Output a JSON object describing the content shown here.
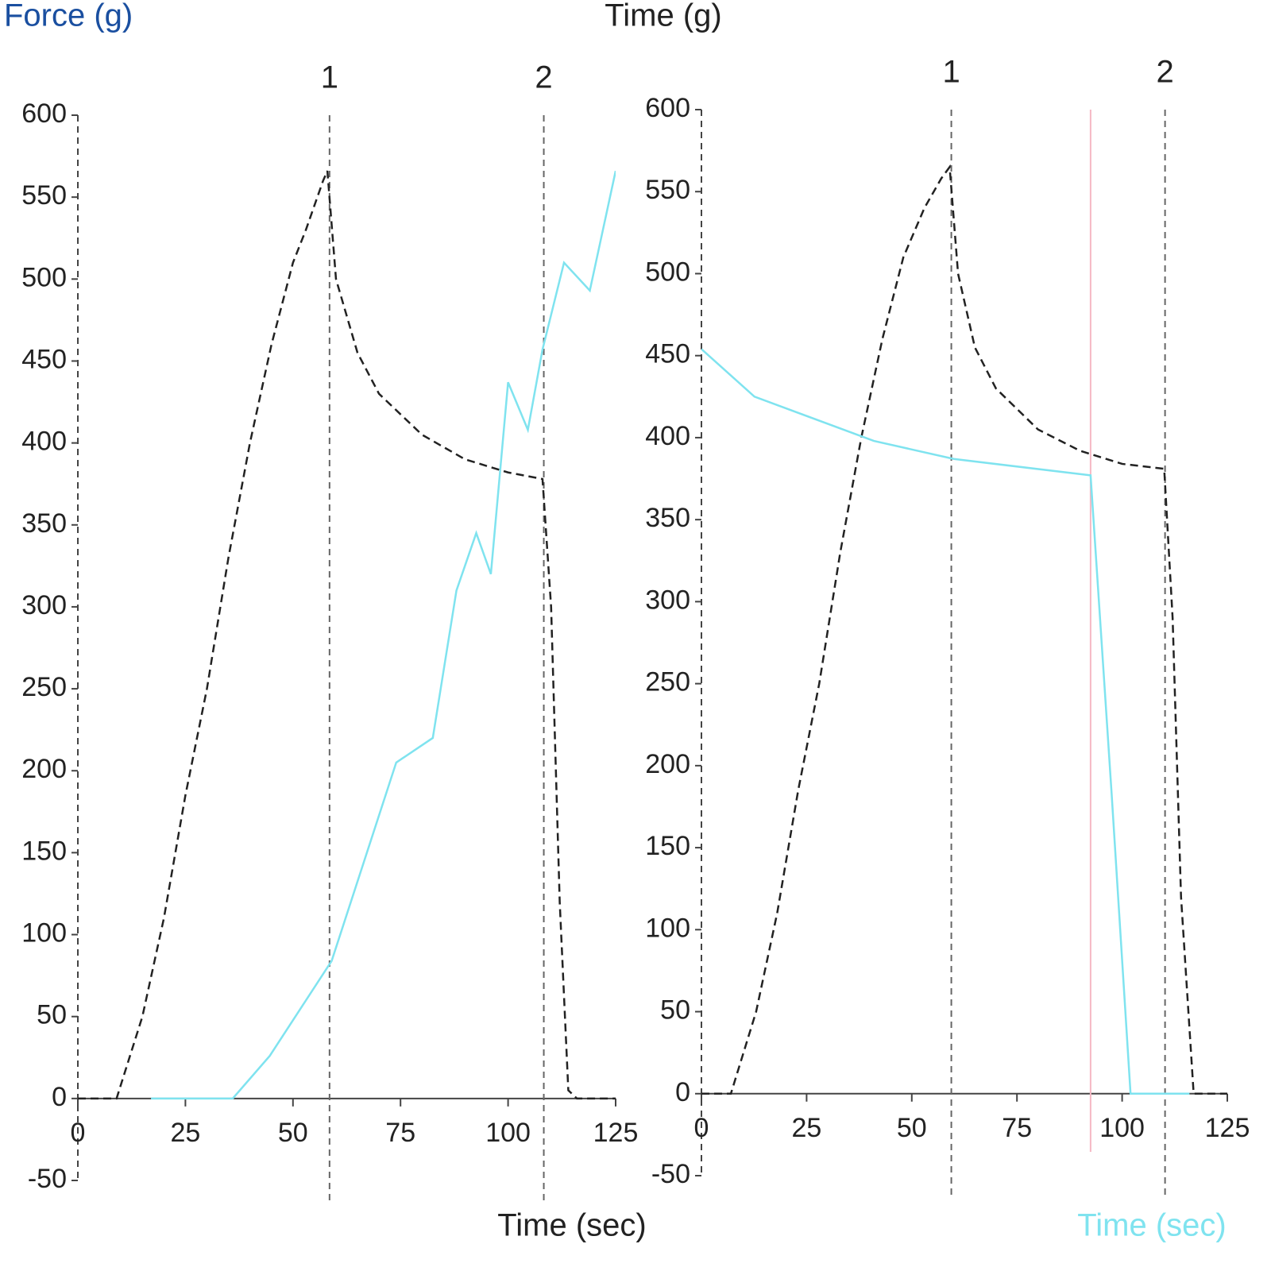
{
  "chart_data": [
    {
      "type": "line",
      "y_label": "Force (g)",
      "x_label": "Time (sec)",
      "xlim": [
        0,
        125
      ],
      "ylim": [
        -50,
        600
      ],
      "xticks": [
        0,
        25,
        50,
        75,
        100,
        125
      ],
      "yticks": [
        -50,
        0,
        50,
        100,
        150,
        200,
        250,
        300,
        350,
        400,
        450,
        500,
        550,
        600
      ],
      "markers": [
        {
          "value": 58.5,
          "label": "1"
        },
        {
          "value": 108.3,
          "label": "2"
        }
      ],
      "series": [
        {
          "color": "#222222",
          "dashed": true,
          "x": [
            0,
            5,
            9,
            15,
            20,
            25,
            30,
            35,
            40,
            45,
            50,
            53,
            55,
            57,
            58,
            60,
            65,
            70,
            80,
            90,
            100,
            108,
            110,
            112,
            114,
            116,
            120,
            125
          ],
          "values": [
            0,
            0,
            0,
            50,
            110,
            185,
            250,
            330,
            400,
            460,
            510,
            530,
            545,
            560,
            566,
            500,
            455,
            430,
            405,
            390,
            382,
            378,
            300,
            120,
            5,
            0,
            0,
            0
          ]
        },
        {
          "color": "#7fe3ef",
          "dashed": false,
          "x": [
            17,
            36,
            44.6,
            59,
            74,
            82.5,
            88,
            92.6,
            96,
            100,
            104.6,
            108,
            113,
            119,
            125
          ],
          "values": [
            0,
            0,
            26,
            84,
            205,
            220,
            310,
            345,
            320,
            437,
            408,
            457,
            510,
            493,
            566
          ]
        }
      ]
    },
    {
      "type": "line",
      "y_label": "Time (g)",
      "x_label": "Time (sec)",
      "xlim": [
        0,
        125
      ],
      "ylim": [
        -50,
        600
      ],
      "xticks": [
        0,
        25,
        50,
        75,
        100,
        125
      ],
      "yticks": [
        -50,
        0,
        50,
        100,
        150,
        200,
        250,
        300,
        350,
        400,
        450,
        500,
        550,
        600
      ],
      "markers": [
        {
          "value": 59.4,
          "label": "1"
        },
        {
          "value": 110.2,
          "label": "2"
        }
      ],
      "cursor_x": 92.5,
      "series": [
        {
          "color": "#222222",
          "dashed": true,
          "x": [
            0,
            7,
            13,
            18,
            23,
            28,
            33,
            38,
            43,
            48,
            53,
            57,
            59,
            61,
            65,
            70,
            80,
            90,
            100,
            110,
            112,
            114,
            117,
            125
          ],
          "values": [
            0,
            0,
            50,
            110,
            185,
            250,
            330,
            400,
            460,
            510,
            540,
            558,
            565,
            500,
            455,
            430,
            405,
            392,
            384,
            381,
            290,
            120,
            0,
            0
          ]
        },
        {
          "color": "#7fe3ef",
          "dashed": false,
          "x": [
            0,
            12.6,
            41,
            60,
            92.5,
            97.5,
            102,
            116
          ],
          "values": [
            454,
            425,
            398,
            387,
            377,
            183,
            0,
            0
          ]
        }
      ]
    }
  ]
}
